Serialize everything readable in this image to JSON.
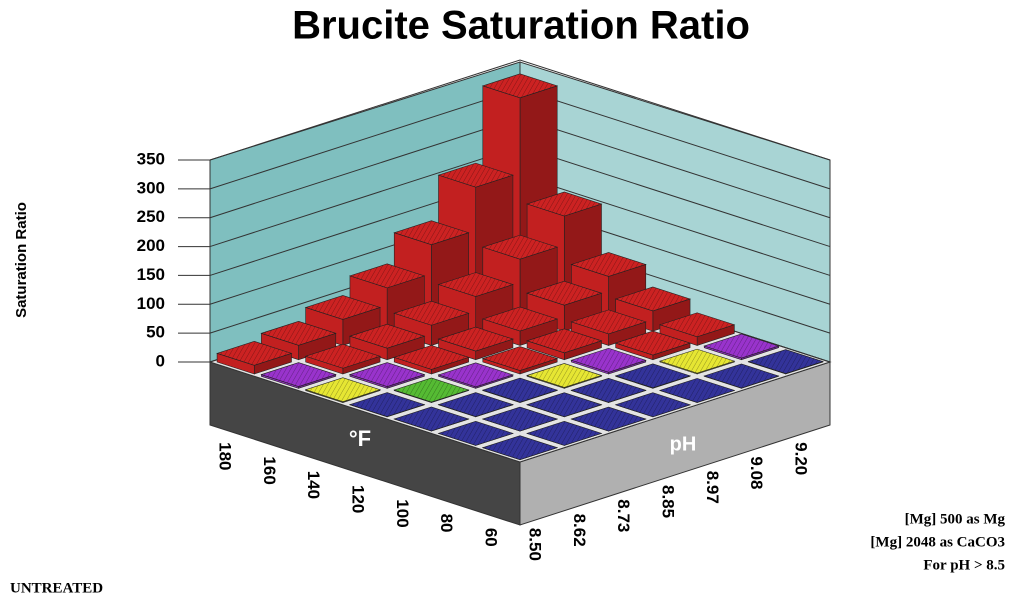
{
  "chart_data": {
    "type": "bar3d",
    "title": "Brucite Saturation Ratio",
    "ylabel": "Saturation Ratio",
    "xlabel": "°F",
    "zlabel": "pH",
    "x": [
      "180",
      "160",
      "140",
      "120",
      "100",
      "80",
      "60"
    ],
    "z": [
      "8.50",
      "8.62",
      "8.73",
      "8.85",
      "8.97",
      "9.08",
      "9.20"
    ],
    "values": [
      [
        15,
        25,
        45,
        75,
        125,
        200,
        330
      ],
      [
        3,
        10,
        20,
        35,
        60,
        100,
        150
      ],
      [
        1.5,
        3,
        8,
        15,
        25,
        45,
        70
      ],
      [
        0.5,
        1,
        2.5,
        6,
        12,
        20,
        35
      ],
      [
        0.3,
        0.5,
        0.8,
        1.5,
        3,
        8,
        15
      ],
      [
        0.1,
        0.2,
        0.3,
        0.5,
        0.8,
        1.5,
        3
      ],
      [
        0.05,
        0.1,
        0.15,
        0.2,
        0.3,
        0.5,
        0.8
      ]
    ],
    "colors": [
      [
        "#cc2222",
        "#cc2222",
        "#cc2222",
        "#cc2222",
        "#cc2222",
        "#cc2222",
        "#cc2222"
      ],
      [
        "#9933cc",
        "#cc2222",
        "#cc2222",
        "#cc2222",
        "#cc2222",
        "#cc2222",
        "#cc2222"
      ],
      [
        "#e6e633",
        "#9933cc",
        "#cc2222",
        "#cc2222",
        "#cc2222",
        "#cc2222",
        "#cc2222"
      ],
      [
        "#33339a",
        "#55bb33",
        "#9933cc",
        "#cc2222",
        "#cc2222",
        "#cc2222",
        "#cc2222"
      ],
      [
        "#33339a",
        "#33339a",
        "#33339a",
        "#e6e633",
        "#9933cc",
        "#cc2222",
        "#cc2222"
      ],
      [
        "#33339a",
        "#33339a",
        "#33339a",
        "#33339a",
        "#33339a",
        "#e6e633",
        "#9933cc"
      ],
      [
        "#33339a",
        "#33339a",
        "#33339a",
        "#33339a",
        "#33339a",
        "#33339a",
        "#33339a"
      ]
    ],
    "ylim": [
      0,
      350
    ],
    "yticks": [
      0,
      50,
      100,
      150,
      200,
      250,
      300,
      350
    ],
    "annotations": [
      "[Mg] 500 as Mg",
      "[Mg] 2048 as CaCO3",
      "For pH  > 8.5"
    ],
    "note": "UNTREATED"
  }
}
